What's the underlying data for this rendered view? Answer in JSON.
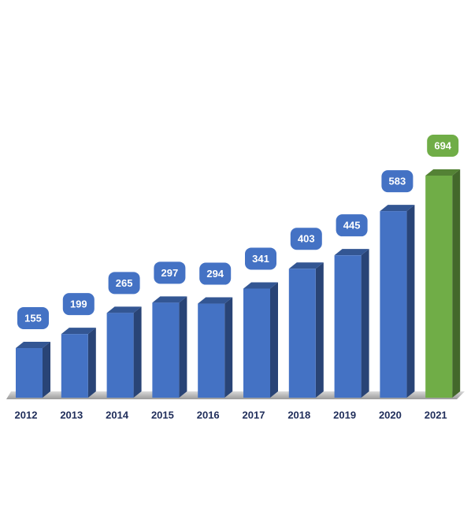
{
  "chart_data": {
    "type": "bar3d",
    "categories": [
      "2012",
      "2013",
      "2014",
      "2015",
      "2016",
      "2017",
      "2018",
      "2019",
      "2020",
      "2021"
    ],
    "values": [
      155,
      199,
      265,
      297,
      294,
      341,
      403,
      445,
      583,
      694
    ],
    "colors": [
      "#4472c4",
      "#4472c4",
      "#4472c4",
      "#4472c4",
      "#4472c4",
      "#4472c4",
      "#4472c4",
      "#4472c4",
      "#4472c4",
      "#70ad47"
    ]
  }
}
